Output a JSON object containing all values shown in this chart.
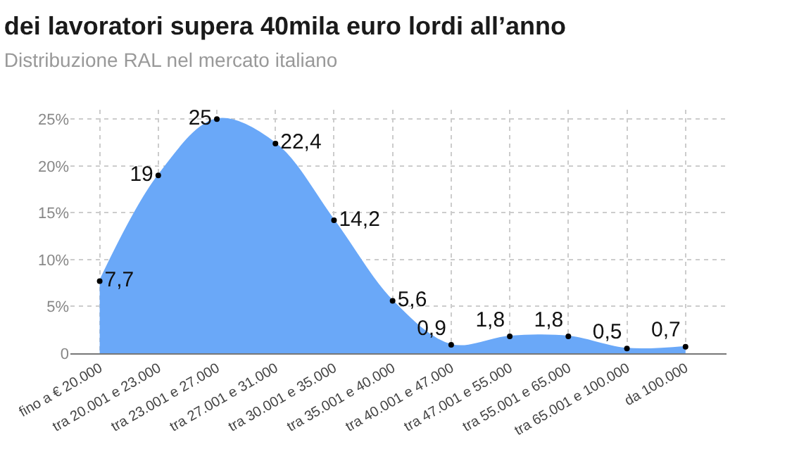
{
  "chart_data": {
    "type": "area",
    "title": "dei lavoratori supera 40mila euro lordi all’anno",
    "subtitle": "Distribuzione RAL nel mercato italiano",
    "categories": [
      "fino a € 20.000",
      "tra 20.001 e 23.000",
      "tra 23.001 e 27.000",
      "tra 27.001 e 31.000",
      "tra 30.001 e 35.000",
      "tra 35.001 e 40.000",
      "tra 40.001 e 47.000",
      "tra 47.001 e 55.000",
      "tra 55.001 e 65.000",
      "tra 65.001 e 100.000",
      "da 100.000"
    ],
    "series": [
      {
        "color": "#6aa8f8",
        "values": [
          7.7,
          19,
          25,
          22.4,
          14.2,
          5.6,
          0.9,
          1.8,
          1.8,
          0.5,
          0.7
        ],
        "value_labels": [
          "7,7",
          "19",
          "25",
          "22,4",
          "14,2",
          "5,6",
          "0,9",
          "1,8",
          "1,8",
          "0,5",
          "0,7"
        ]
      }
    ],
    "ylim": [
      0,
      26
    ],
    "yticks": [
      0,
      {
        "value": 5,
        "label": "5%"
      },
      {
        "value": 10,
        "label": "10%"
      },
      {
        "value": 15,
        "label": "15%"
      },
      {
        "value": 20,
        "label": "20%"
      },
      {
        "value": 25,
        "label": "25%"
      }
    ],
    "grid": true,
    "marker": "circle",
    "legend": false
  }
}
